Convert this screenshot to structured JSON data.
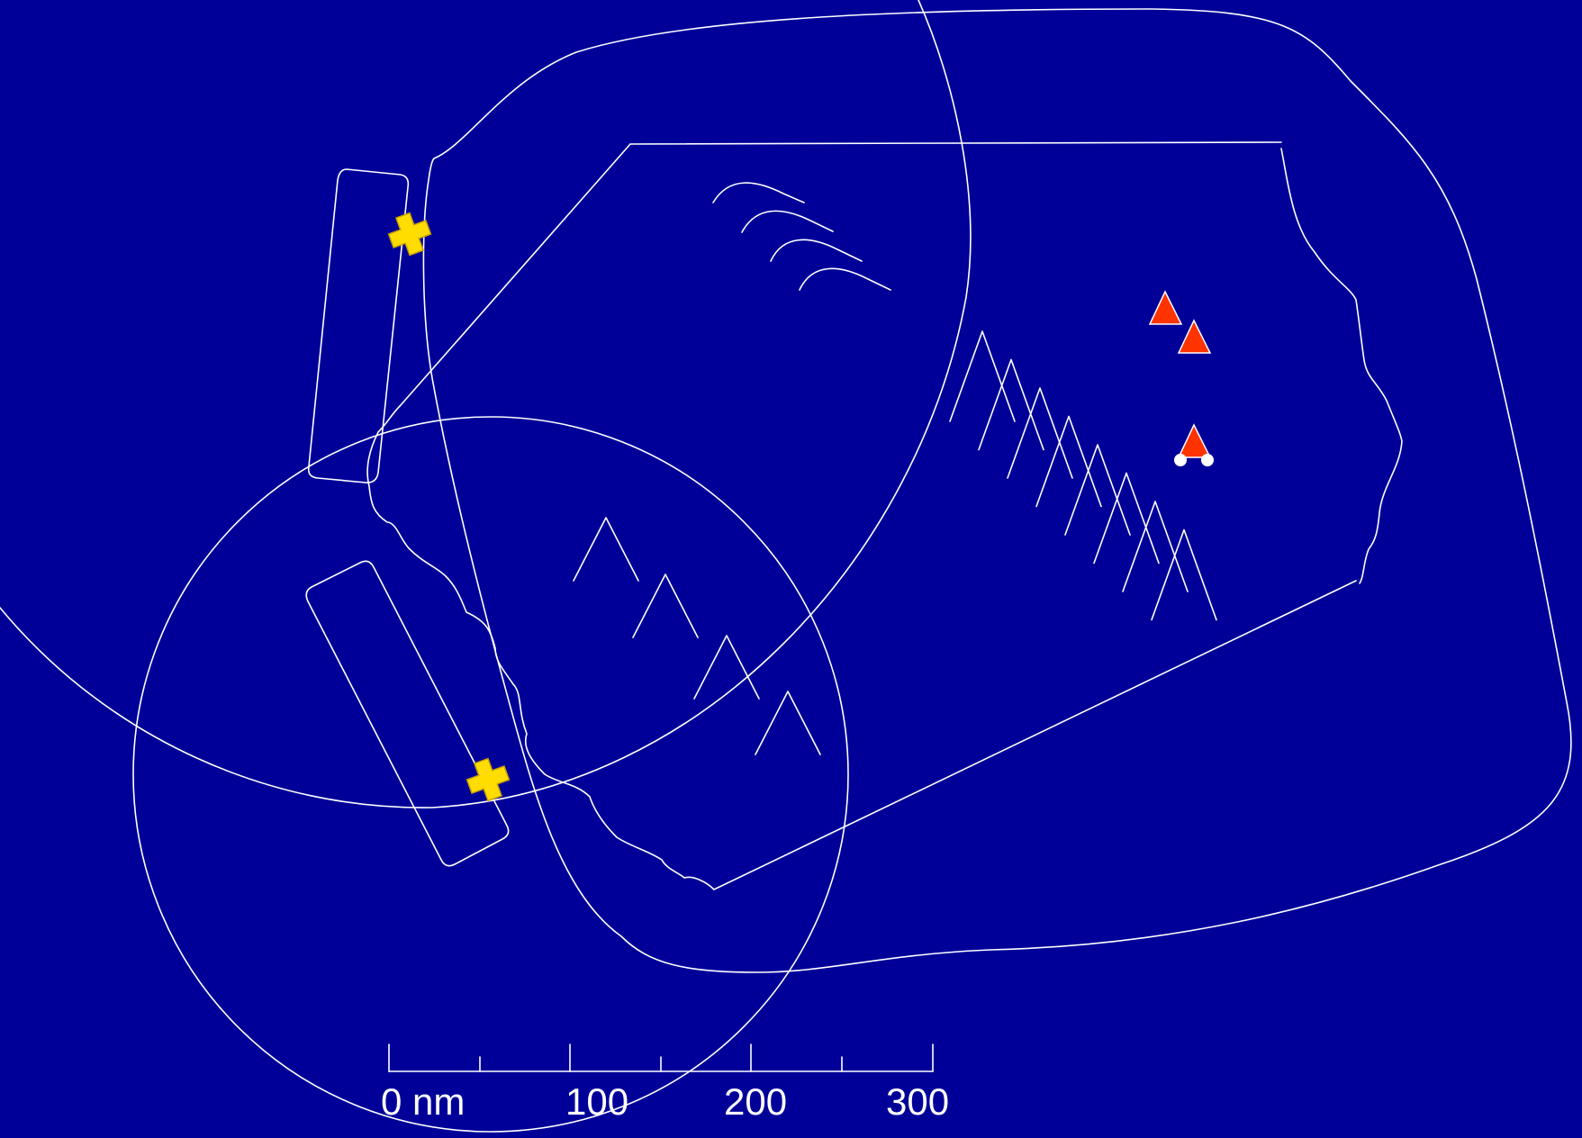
{
  "scale_bar": {
    "unit_label": "0 nm",
    "tick_labels": [
      "100",
      "200",
      "300"
    ]
  },
  "markers": {
    "cross": {
      "icon": "yellow-cross-icon",
      "color": "#ffdd00",
      "count": 2
    },
    "triangle": {
      "icon": "red-triangle-icon",
      "color": "#ff3300",
      "count": 3
    },
    "dot": {
      "icon": "white-dot-icon",
      "color": "#ffffff",
      "count": 2
    }
  },
  "colors": {
    "background": "#000099",
    "lines": "#ffffff"
  }
}
